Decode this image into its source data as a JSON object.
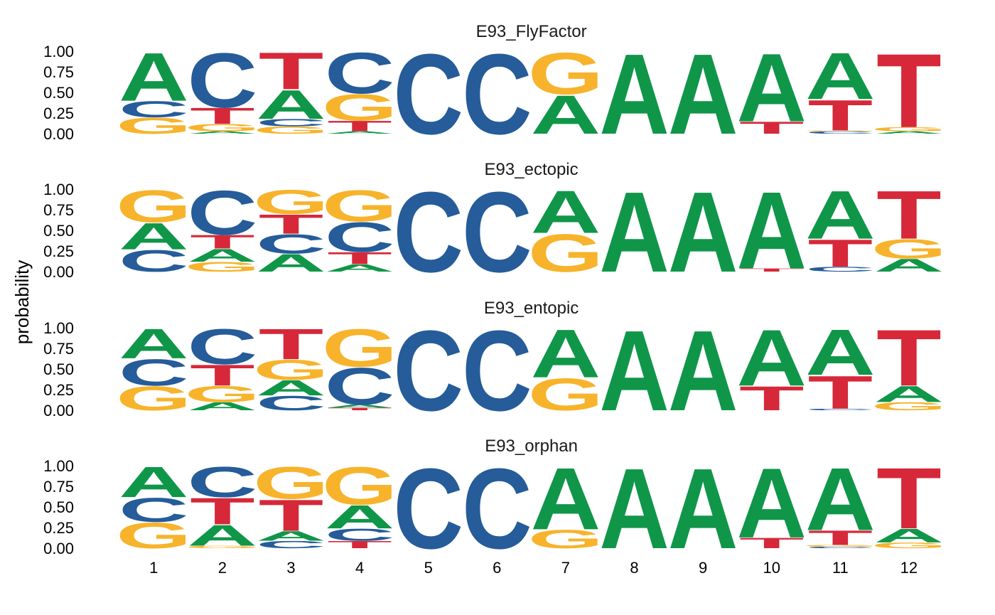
{
  "chart_data": {
    "type": "sequence-logo",
    "ylabel": "probability",
    "y_ticks": [
      "0.00",
      "0.25",
      "0.50",
      "0.75",
      "1.00"
    ],
    "ylim": [
      0,
      1
    ],
    "positions": [
      "1",
      "2",
      "3",
      "4",
      "5",
      "6",
      "7",
      "8",
      "9",
      "10",
      "11",
      "12"
    ],
    "colors": {
      "A": "#109649",
      "C": "#255C99",
      "G": "#F7B32B",
      "T": "#D62839"
    },
    "panels": [
      {
        "title": "E93_FlyFactor",
        "positions": [
          [
            [
              "G",
              0.2
            ],
            [
              "C",
              0.2
            ],
            [
              "A",
              0.6
            ]
          ],
          [
            [
              "A",
              0.03
            ],
            [
              "G",
              0.09
            ],
            [
              "T",
              0.2
            ],
            [
              "C",
              0.68
            ]
          ],
          [
            [
              "G",
              0.09
            ],
            [
              "C",
              0.09
            ],
            [
              "A",
              0.36
            ],
            [
              "T",
              0.46
            ]
          ],
          [
            [
              "A",
              0.03
            ],
            [
              "T",
              0.13
            ],
            [
              "G",
              0.33
            ],
            [
              "C",
              0.51
            ]
          ],
          [
            [
              "C",
              1.0
            ]
          ],
          [
            [
              "C",
              1.0
            ]
          ],
          [
            [
              "A",
              0.48
            ],
            [
              "G",
              0.52
            ]
          ],
          [
            [
              "A",
              1.0
            ]
          ],
          [
            [
              "A",
              1.0
            ]
          ],
          [
            [
              "T",
              0.15
            ],
            [
              "A",
              0.85
            ]
          ],
          [
            [
              "C",
              0.03
            ],
            [
              "G",
              0.01
            ],
            [
              "T",
              0.38
            ],
            [
              "A",
              0.58
            ]
          ],
          [
            [
              "A",
              0.03
            ],
            [
              "G",
              0.05
            ],
            [
              "T",
              0.92
            ]
          ]
        ]
      },
      {
        "title": "E93_ectopic",
        "positions": [
          [
            [
              "C",
              0.27
            ],
            [
              "A",
              0.33
            ],
            [
              "G",
              0.4
            ]
          ],
          [
            [
              "G",
              0.12
            ],
            [
              "A",
              0.16
            ],
            [
              "T",
              0.17
            ],
            [
              "C",
              0.55
            ]
          ],
          [
            [
              "A",
              0.22
            ],
            [
              "C",
              0.24
            ],
            [
              "T",
              0.24
            ],
            [
              "G",
              0.3
            ]
          ],
          [
            [
              "A",
              0.09
            ],
            [
              "T",
              0.15
            ],
            [
              "C",
              0.37
            ],
            [
              "G",
              0.39
            ]
          ],
          [
            [
              "C",
              1.0
            ]
          ],
          [
            [
              "C",
              1.0
            ]
          ],
          [
            [
              "G",
              0.47
            ],
            [
              "A",
              0.53
            ]
          ],
          [
            [
              "A",
              1.0
            ]
          ],
          [
            [
              "A",
              1.0
            ]
          ],
          [
            [
              "T",
              0.04
            ],
            [
              "A",
              0.96
            ]
          ],
          [
            [
              "C",
              0.06
            ],
            [
              "T",
              0.34
            ],
            [
              "A",
              0.6
            ]
          ],
          [
            [
              "A",
              0.16
            ],
            [
              "G",
              0.24
            ],
            [
              "T",
              0.6
            ]
          ]
        ]
      },
      {
        "title": "E93_entopic",
        "positions": [
          [
            [
              "G",
              0.3
            ],
            [
              "C",
              0.33
            ],
            [
              "A",
              0.37
            ]
          ],
          [
            [
              "A",
              0.1
            ],
            [
              "G",
              0.2
            ],
            [
              "T",
              0.26
            ],
            [
              "C",
              0.44
            ]
          ],
          [
            [
              "C",
              0.18
            ],
            [
              "A",
              0.19
            ],
            [
              "G",
              0.25
            ],
            [
              "T",
              0.38
            ]
          ],
          [
            [
              "T",
              0.03
            ],
            [
              "A",
              0.04
            ],
            [
              "C",
              0.46
            ],
            [
              "G",
              0.47
            ]
          ],
          [
            [
              "C",
              1.0
            ]
          ],
          [
            [
              "C",
              1.0
            ]
          ],
          [
            [
              "G",
              0.4
            ],
            [
              "A",
              0.6
            ]
          ],
          [
            [
              "A",
              1.0
            ]
          ],
          [
            [
              "A",
              1.0
            ]
          ],
          [
            [
              "T",
              0.3
            ],
            [
              "A",
              0.7
            ]
          ],
          [
            [
              "C",
              0.02
            ],
            [
              "T",
              0.41
            ],
            [
              "A",
              0.57
            ]
          ],
          [
            [
              "G",
              0.1
            ],
            [
              "A",
              0.2
            ],
            [
              "T",
              0.7
            ]
          ]
        ]
      },
      {
        "title": "E93_orphan",
        "positions": [
          [
            [
              "G",
              0.32
            ],
            [
              "C",
              0.3
            ],
            [
              "A",
              0.38
            ]
          ],
          [
            [
              "G",
              0.03
            ],
            [
              "A",
              0.26
            ],
            [
              "T",
              0.33
            ],
            [
              "C",
              0.38
            ]
          ],
          [
            [
              "C",
              0.09
            ],
            [
              "A",
              0.12
            ],
            [
              "T",
              0.39
            ],
            [
              "G",
              0.4
            ]
          ],
          [
            [
              "T",
              0.09
            ],
            [
              "C",
              0.15
            ],
            [
              "A",
              0.29
            ],
            [
              "G",
              0.47
            ]
          ],
          [
            [
              "C",
              1.0
            ]
          ],
          [
            [
              "C",
              1.0
            ]
          ],
          [
            [
              "G",
              0.23
            ],
            [
              "A",
              0.77
            ]
          ],
          [
            [
              "A",
              1.0
            ]
          ],
          [
            [
              "A",
              1.0
            ]
          ],
          [
            [
              "T",
              0.13
            ],
            [
              "A",
              0.87
            ]
          ],
          [
            [
              "C",
              0.02
            ],
            [
              "G",
              0.02
            ],
            [
              "T",
              0.18
            ],
            [
              "A",
              0.78
            ]
          ],
          [
            [
              "G",
              0.07
            ],
            [
              "A",
              0.17
            ],
            [
              "T",
              0.76
            ]
          ]
        ]
      }
    ]
  }
}
